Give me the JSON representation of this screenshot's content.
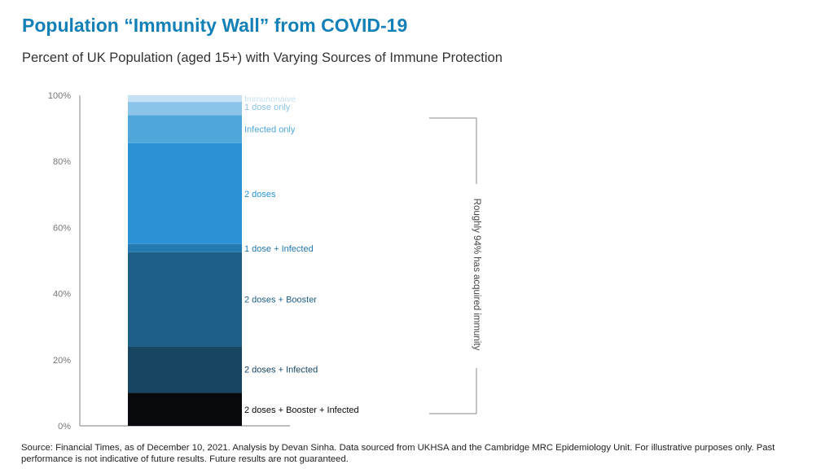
{
  "title": "Population “Immunity Wall” from COVID-19",
  "subtitle": "Percent of UK Population (aged 15+) with Varying Sources of Immune Protection",
  "chart_data": {
    "type": "bar",
    "stacked": true,
    "categories": [
      ""
    ],
    "ylim": [
      0,
      100
    ],
    "yticks": [
      "0%",
      "20%",
      "40%",
      "60%",
      "80%",
      "100%"
    ],
    "ytick_values": [
      0,
      20,
      40,
      60,
      80,
      100
    ],
    "grid": false,
    "series": [
      {
        "name": "2 doses + Booster + Infected",
        "values": [
          10
        ],
        "color": "#07090c"
      },
      {
        "name": "2 doses + Infected",
        "values": [
          14
        ],
        "color": "#174562"
      },
      {
        "name": "2 doses + Booster",
        "values": [
          28.5
        ],
        "color": "#1e5f88"
      },
      {
        "name": "1 dose + Infected",
        "values": [
          2.5
        ],
        "color": "#2479b0"
      },
      {
        "name": "2 doses",
        "values": [
          30.5
        ],
        "color": "#2b93d5"
      },
      {
        "name": "Infected only",
        "values": [
          8.5
        ],
        "color": "#4fa6db"
      },
      {
        "name": "1 dose only",
        "values": [
          4
        ],
        "color": "#8cc3e8"
      },
      {
        "name": "Immunonaive",
        "values": [
          2
        ],
        "color": "#c5e0f3"
      }
    ],
    "annotation": "Roughly 94% has acquired immunity"
  },
  "source": "Source: Financial Times, as of December 10, 2021. Analysis by Devan Sinha. Data sourced from UKHSA and the Cambridge MRC Epidemiology Unit. For illustrative purposes only. Past performance is not indicative of future results. Future results are not guaranteed."
}
